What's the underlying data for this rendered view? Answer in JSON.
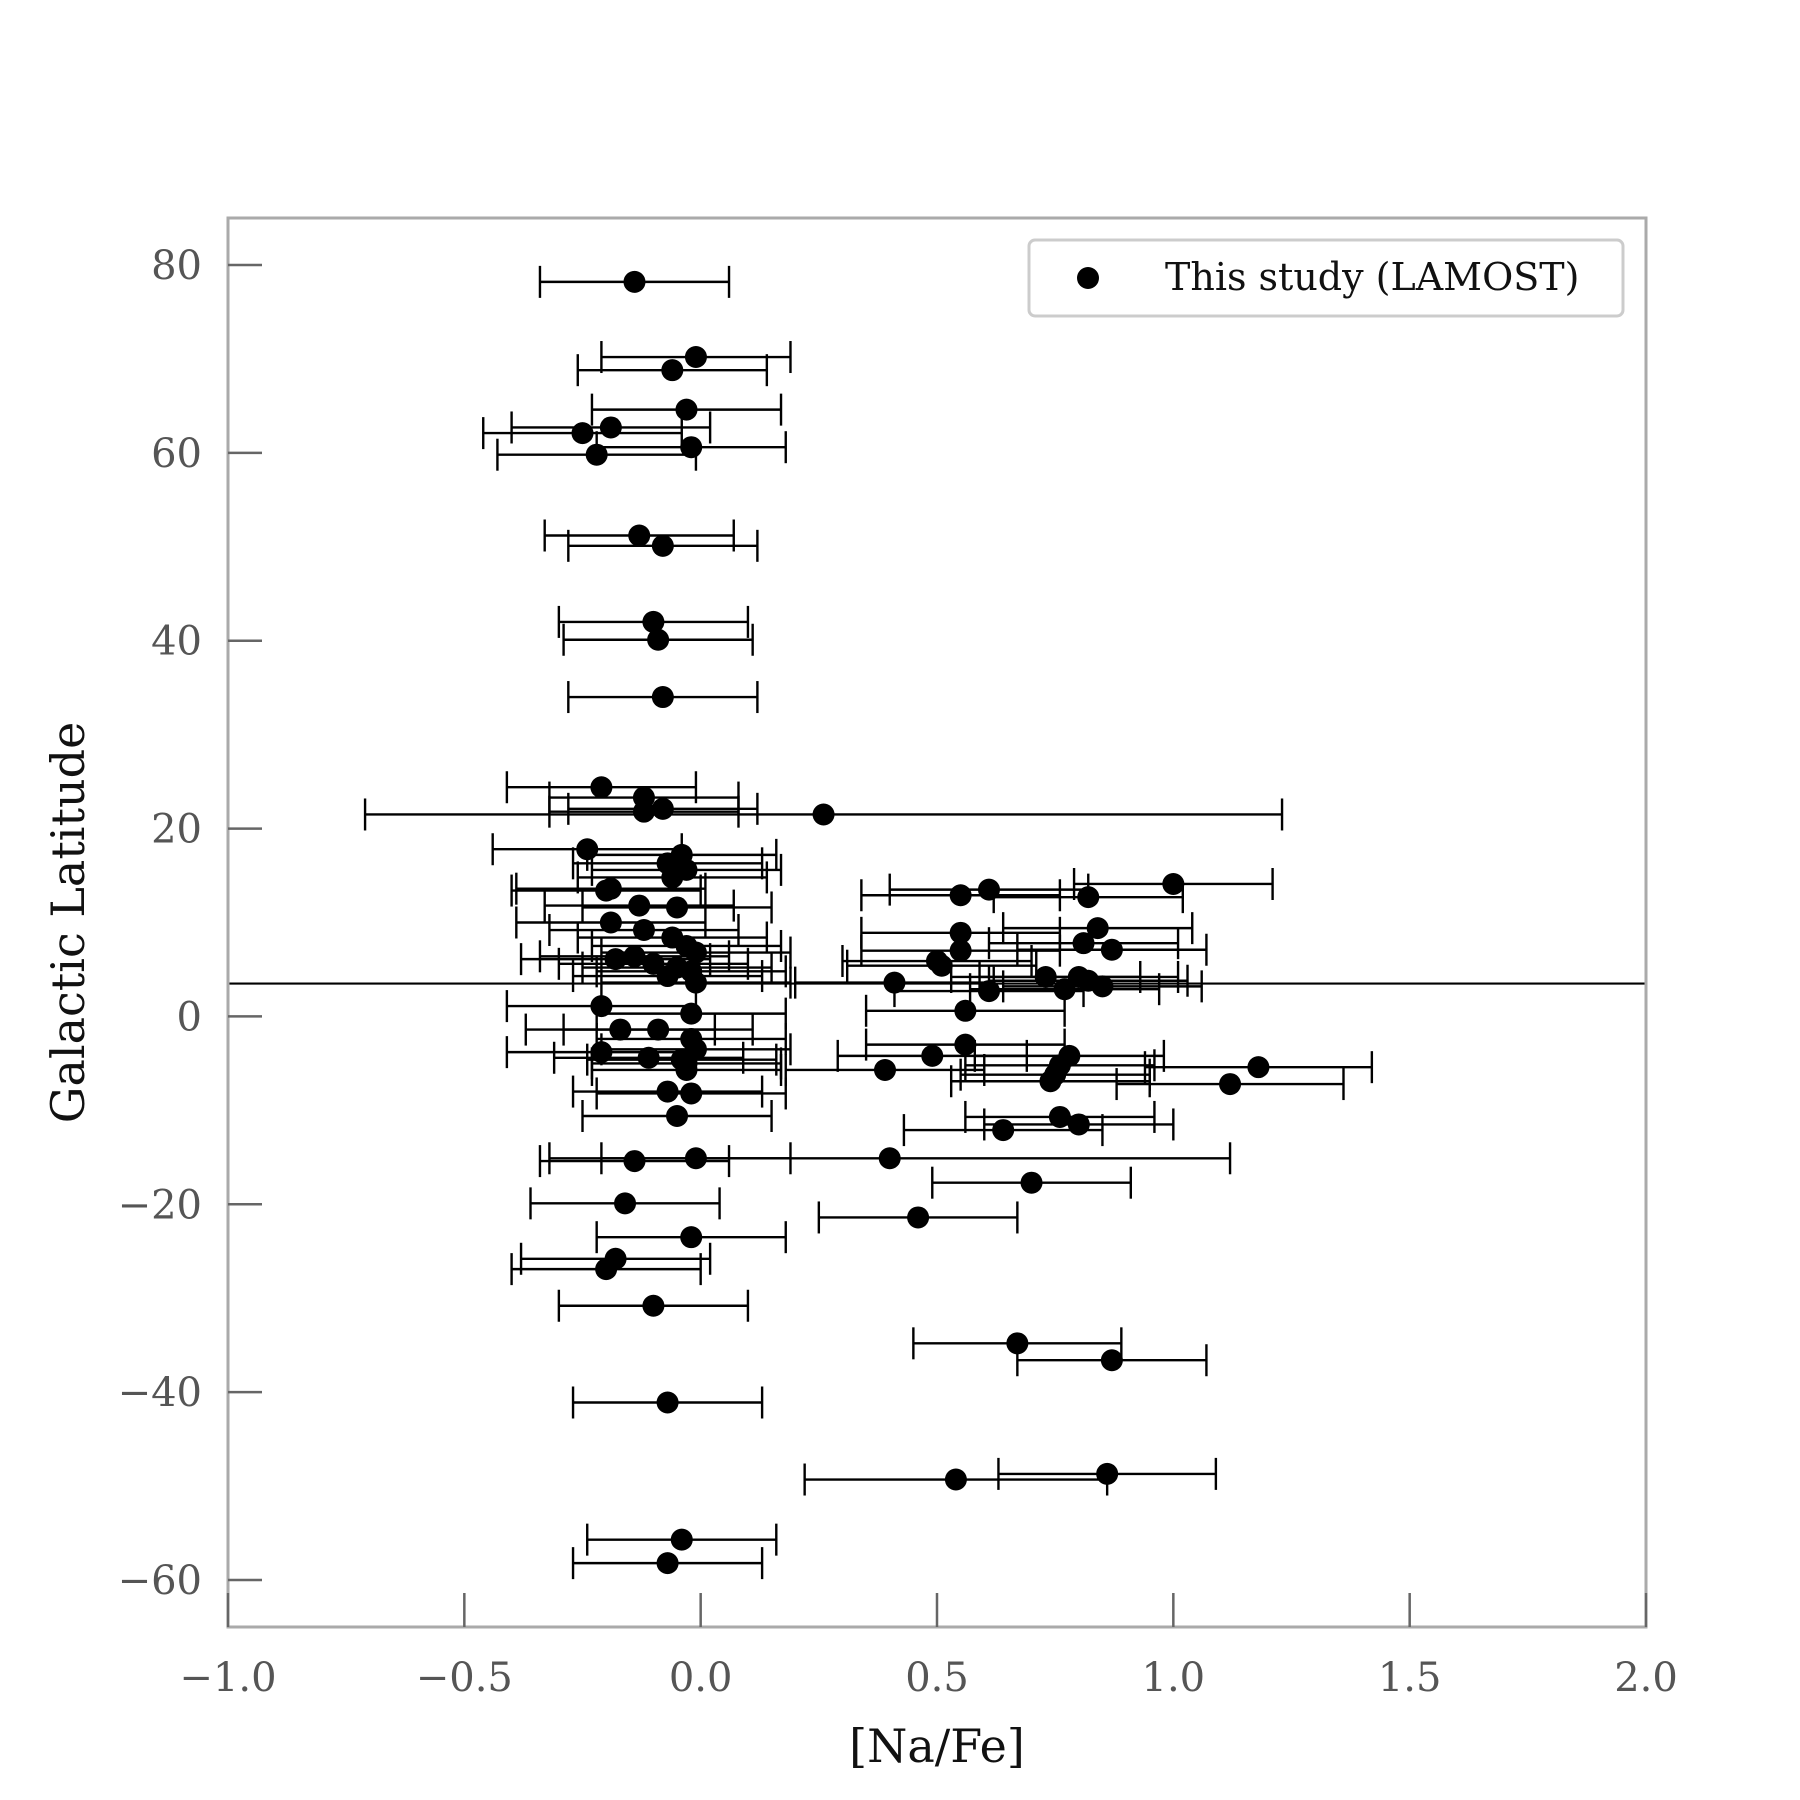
{
  "chart_data": {
    "type": "scatter",
    "xlabel": "[Na/Fe]",
    "ylabel": "Galactic Latitude",
    "xlim": [
      -1.0,
      2.0
    ],
    "ylim": [
      -65,
      85
    ],
    "x_ticks": [
      -1.0,
      -0.5,
      0.0,
      0.5,
      1.0,
      1.5,
      2.0
    ],
    "x_tick_labels": [
      "−1.0",
      "−0.5",
      "0.0",
      "0.5",
      "1.0",
      "1.5",
      "2.0"
    ],
    "y_ticks": [
      -60,
      -40,
      -20,
      0,
      20,
      40,
      60,
      80
    ],
    "y_tick_labels": [
      "−60",
      "−40",
      "−20",
      "0",
      "20",
      "40",
      "60",
      "80"
    ],
    "grid": false,
    "legend_position": "top-right",
    "hline_y": 3.5,
    "marker_color": "#000000",
    "series": [
      {
        "name": "This study (LAMOST)",
        "points": [
          {
            "x": -0.14,
            "y": 78.2,
            "xerr": 0.2
          },
          {
            "x": -0.01,
            "y": 70.2,
            "xerr": 0.2
          },
          {
            "x": -0.06,
            "y": 68.8,
            "xerr": 0.2
          },
          {
            "x": -0.03,
            "y": 64.6,
            "xerr": 0.2
          },
          {
            "x": -0.19,
            "y": 62.7,
            "xerr": 0.21
          },
          {
            "x": -0.25,
            "y": 62.1,
            "xerr": 0.21
          },
          {
            "x": -0.02,
            "y": 60.6,
            "xerr": 0.2
          },
          {
            "x": -0.22,
            "y": 59.8,
            "xerr": 0.21
          },
          {
            "x": -0.13,
            "y": 51.2,
            "xerr": 0.2
          },
          {
            "x": -0.08,
            "y": 50.1,
            "xerr": 0.2
          },
          {
            "x": -0.1,
            "y": 42.0,
            "xerr": 0.2
          },
          {
            "x": -0.09,
            "y": 40.1,
            "xerr": 0.2
          },
          {
            "x": -0.08,
            "y": 34.0,
            "xerr": 0.2
          },
          {
            "x": -0.21,
            "y": 24.4,
            "xerr": 0.2
          },
          {
            "x": -0.12,
            "y": 23.3,
            "xerr": 0.2
          },
          {
            "x": -0.08,
            "y": 22.1,
            "xerr": 0.2
          },
          {
            "x": -0.12,
            "y": 21.8,
            "xerr": 0.2
          },
          {
            "x": 0.26,
            "y": 21.5,
            "xerr": 0.97
          },
          {
            "x": -0.24,
            "y": 17.8,
            "xerr": 0.2
          },
          {
            "x": -0.04,
            "y": 17.2,
            "xerr": 0.2
          },
          {
            "x": -0.07,
            "y": 16.3,
            "xerr": 0.2
          },
          {
            "x": -0.03,
            "y": 15.6,
            "xerr": 0.2
          },
          {
            "x": -0.06,
            "y": 14.8,
            "xerr": 0.2
          },
          {
            "x": -0.19,
            "y": 13.6,
            "xerr": 0.2
          },
          {
            "x": -0.2,
            "y": 13.4,
            "xerr": 0.2
          },
          {
            "x": 1.0,
            "y": 14.1,
            "xerr": 0.21
          },
          {
            "x": 0.61,
            "y": 13.5,
            "xerr": 0.21
          },
          {
            "x": 0.55,
            "y": 12.9,
            "xerr": 0.21
          },
          {
            "x": 0.82,
            "y": 12.7,
            "xerr": 0.2
          },
          {
            "x": -0.13,
            "y": 11.8,
            "xerr": 0.2
          },
          {
            "x": -0.05,
            "y": 11.6,
            "xerr": 0.2
          },
          {
            "x": -0.19,
            "y": 10.0,
            "xerr": 0.2
          },
          {
            "x": 0.84,
            "y": 9.4,
            "xerr": 0.2
          },
          {
            "x": -0.12,
            "y": 9.2,
            "xerr": 0.2
          },
          {
            "x": 0.55,
            "y": 8.9,
            "xerr": 0.21
          },
          {
            "x": -0.06,
            "y": 8.4,
            "xerr": 0.2
          },
          {
            "x": 0.81,
            "y": 7.8,
            "xerr": 0.2
          },
          {
            "x": -0.03,
            "y": 7.5,
            "xerr": 0.2
          },
          {
            "x": 0.55,
            "y": 7.0,
            "xerr": 0.21
          },
          {
            "x": 0.87,
            "y": 7.1,
            "xerr": 0.2
          },
          {
            "x": -0.01,
            "y": 6.8,
            "xerr": 0.2
          },
          {
            "x": -0.18,
            "y": 6.1,
            "xerr": 0.2
          },
          {
            "x": -0.14,
            "y": 6.4,
            "xerr": 0.2
          },
          {
            "x": 0.5,
            "y": 5.9,
            "xerr": 0.2
          },
          {
            "x": 0.51,
            "y": 5.4,
            "xerr": 0.2
          },
          {
            "x": -0.1,
            "y": 5.6,
            "xerr": 0.2
          },
          {
            "x": -0.05,
            "y": 5.2,
            "xerr": 0.2
          },
          {
            "x": -0.02,
            "y": 4.8,
            "xerr": 0.2
          },
          {
            "x": -0.07,
            "y": 4.3,
            "xerr": 0.2
          },
          {
            "x": 0.73,
            "y": 4.2,
            "xerr": 0.2
          },
          {
            "x": 0.8,
            "y": 4.2,
            "xerr": 0.21
          },
          {
            "x": 0.82,
            "y": 3.8,
            "xerr": 0.21
          },
          {
            "x": -0.01,
            "y": 3.6,
            "xerr": 0.2
          },
          {
            "x": 0.41,
            "y": 3.6,
            "xerr": 0.21
          },
          {
            "x": 0.85,
            "y": 3.2,
            "xerr": 0.21
          },
          {
            "x": 0.77,
            "y": 2.9,
            "xerr": 0.2
          },
          {
            "x": 0.61,
            "y": 2.7,
            "xerr": 0.2
          },
          {
            "x": -0.21,
            "y": 1.1,
            "xerr": 0.2
          },
          {
            "x": 0.56,
            "y": 0.6,
            "xerr": 0.21
          },
          {
            "x": -0.02,
            "y": 0.3,
            "xerr": 0.2
          },
          {
            "x": -0.17,
            "y": -1.4,
            "xerr": 0.2
          },
          {
            "x": -0.09,
            "y": -1.4,
            "xerr": 0.2
          },
          {
            "x": -0.02,
            "y": -2.4,
            "xerr": 0.2
          },
          {
            "x": 0.56,
            "y": -3.0,
            "xerr": 0.21
          },
          {
            "x": -0.01,
            "y": -3.5,
            "xerr": 0.2
          },
          {
            "x": -0.21,
            "y": -3.8,
            "xerr": 0.2
          },
          {
            "x": 0.49,
            "y": -4.2,
            "xerr": 0.2
          },
          {
            "x": 0.78,
            "y": -4.2,
            "xerr": 0.2
          },
          {
            "x": -0.11,
            "y": -4.4,
            "xerr": 0.2
          },
          {
            "x": -0.04,
            "y": -4.6,
            "xerr": 0.2
          },
          {
            "x": -0.03,
            "y": -5.0,
            "xerr": 0.2
          },
          {
            "x": 0.76,
            "y": -5.2,
            "xerr": 0.2
          },
          {
            "x": 1.18,
            "y": -5.4,
            "xerr": 0.24
          },
          {
            "x": -0.03,
            "y": -5.7,
            "xerr": 0.2
          },
          {
            "x": 0.39,
            "y": -5.7,
            "xerr": 0.21
          },
          {
            "x": 0.75,
            "y": -6.2,
            "xerr": 0.2
          },
          {
            "x": 0.74,
            "y": -6.9,
            "xerr": 0.21
          },
          {
            "x": 1.12,
            "y": -7.2,
            "xerr": 0.24
          },
          {
            "x": -0.07,
            "y": -8.0,
            "xerr": 0.2
          },
          {
            "x": -0.02,
            "y": -8.2,
            "xerr": 0.2
          },
          {
            "x": -0.05,
            "y": -10.6,
            "xerr": 0.2
          },
          {
            "x": 0.76,
            "y": -10.7,
            "xerr": 0.2
          },
          {
            "x": 0.8,
            "y": -11.5,
            "xerr": 0.2
          },
          {
            "x": 0.64,
            "y": -12.1,
            "xerr": 0.21
          },
          {
            "x": 0.4,
            "y": -15.1,
            "xerr": 0.72
          },
          {
            "x": -0.01,
            "y": -15.1,
            "xerr": 0.2
          },
          {
            "x": -0.14,
            "y": -15.4,
            "xerr": 0.2
          },
          {
            "x": 0.7,
            "y": -17.7,
            "xerr": 0.21
          },
          {
            "x": -0.16,
            "y": -19.9,
            "xerr": 0.2
          },
          {
            "x": 0.46,
            "y": -21.4,
            "xerr": 0.21
          },
          {
            "x": -0.02,
            "y": -23.5,
            "xerr": 0.2
          },
          {
            "x": -0.18,
            "y": -25.8,
            "xerr": 0.2
          },
          {
            "x": -0.2,
            "y": -26.9,
            "xerr": 0.2
          },
          {
            "x": -0.1,
            "y": -30.8,
            "xerr": 0.2
          },
          {
            "x": 0.67,
            "y": -34.8,
            "xerr": 0.22
          },
          {
            "x": 0.87,
            "y": -36.6,
            "xerr": 0.2
          },
          {
            "x": -0.07,
            "y": -41.1,
            "xerr": 0.2
          },
          {
            "x": 0.86,
            "y": -48.7,
            "xerr": 0.23
          },
          {
            "x": 0.54,
            "y": -49.3,
            "xerr": 0.32
          },
          {
            "x": -0.04,
            "y": -55.7,
            "xerr": 0.2
          },
          {
            "x": -0.07,
            "y": -58.2,
            "xerr": 0.2
          }
        ]
      }
    ]
  }
}
